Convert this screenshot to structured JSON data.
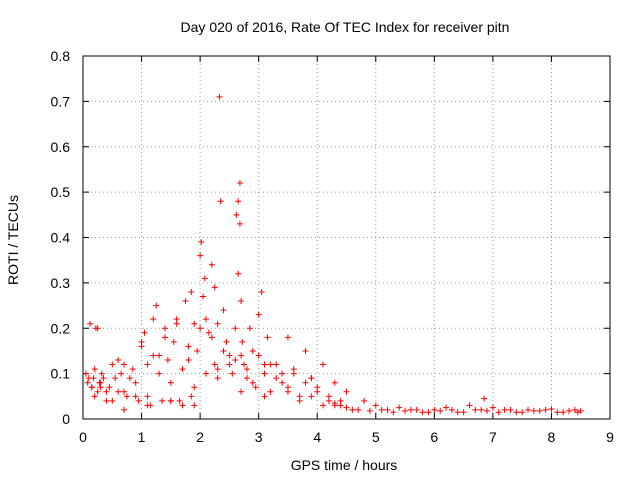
{
  "chart_data": {
    "type": "scatter",
    "title": "Day 020 of 2016, Rate Of TEC Index for receiver pitn",
    "xlabel": "GPS time / hours",
    "ylabel": "ROTI / TECUs",
    "xlim": [
      0,
      9
    ],
    "ylim": [
      0,
      0.8
    ],
    "xticks": [
      "0",
      "1",
      "2",
      "3",
      "4",
      "5",
      "6",
      "7",
      "8",
      "9"
    ],
    "yticks": [
      "0",
      "0.1",
      "0.2",
      "0.3",
      "0.4",
      "0.5",
      "0.6",
      "0.7",
      "0.8"
    ],
    "grid": true,
    "marker": "+",
    "color": "#ff0000",
    "series": [
      {
        "name": "ROTI",
        "x": [
          0.05,
          0.08,
          0.1,
          0.12,
          0.15,
          0.18,
          0.2,
          0.22,
          0.25,
          0.28,
          0.3,
          0.32,
          0.35,
          0.4,
          0.45,
          0.5,
          0.55,
          0.6,
          0.65,
          0.7,
          0.75,
          0.8,
          0.85,
          0.9,
          0.95,
          1.0,
          1.05,
          1.1,
          1.15,
          1.2,
          1.25,
          1.3,
          1.35,
          1.4,
          1.45,
          1.5,
          1.55,
          1.6,
          1.65,
          1.7,
          1.75,
          1.8,
          1.85,
          1.9,
          1.95,
          2.0,
          2.02,
          2.05,
          2.08,
          2.1,
          2.15,
          2.2,
          2.25,
          2.3,
          2.33,
          2.35,
          2.4,
          2.45,
          2.5,
          2.55,
          2.6,
          2.62,
          2.65,
          2.68,
          2.7,
          2.72,
          2.75,
          2.8,
          2.85,
          2.9,
          2.95,
          3.0,
          3.05,
          3.1,
          3.15,
          3.2,
          3.3,
          3.4,
          3.5,
          3.6,
          3.7,
          3.8,
          3.9,
          4.0,
          4.1,
          4.2,
          4.3,
          4.4,
          4.5,
          4.6,
          4.8,
          5.0,
          5.2,
          5.4,
          5.6,
          5.8,
          6.0,
          6.2,
          6.4,
          6.6,
          6.8,
          6.85,
          7.0,
          7.2,
          7.4,
          7.6,
          7.8,
          8.0,
          8.2,
          8.4,
          8.5,
          0.2,
          0.3,
          0.5,
          0.7,
          0.9,
          1.1,
          1.3,
          1.5,
          1.7,
          1.9,
          2.1,
          2.3,
          2.5,
          2.7,
          2.9,
          3.1,
          3.3,
          3.5,
          3.7,
          3.9,
          4.1,
          4.3,
          4.5,
          4.7,
          4.9,
          5.1,
          5.3,
          5.5,
          5.7,
          5.9,
          6.1,
          6.3,
          6.5,
          6.7,
          6.9,
          7.1,
          7.3,
          7.5,
          7.7,
          7.9,
          8.1,
          8.3,
          8.45,
          0.25,
          0.6,
          1.0,
          1.2,
          1.4,
          1.6,
          1.8,
          2.0,
          2.2,
          2.4,
          2.6,
          2.8,
          3.0,
          3.2,
          3.4,
          3.6,
          3.8,
          4.0,
          4.2,
          4.4,
          0.15,
          0.4,
          0.7,
          1.1,
          1.5,
          1.9,
          2.3,
          2.7,
          3.1,
          3.5,
          3.9,
          4.3,
          1.85,
          2.65,
          2.68,
          2.25
        ],
        "y": [
          0.1,
          0.08,
          0.09,
          0.21,
          0.07,
          0.09,
          0.11,
          0.2,
          0.06,
          0.08,
          0.07,
          0.1,
          0.09,
          0.06,
          0.07,
          0.12,
          0.09,
          0.06,
          0.1,
          0.12,
          0.05,
          0.09,
          0.11,
          0.08,
          0.04,
          0.16,
          0.19,
          0.12,
          0.03,
          0.22,
          0.25,
          0.14,
          0.04,
          0.2,
          0.13,
          0.04,
          0.17,
          0.22,
          0.04,
          0.11,
          0.26,
          0.13,
          0.05,
          0.21,
          0.15,
          0.36,
          0.39,
          0.27,
          0.31,
          0.22,
          0.19,
          0.34,
          0.12,
          0.21,
          0.71,
          0.48,
          0.24,
          0.17,
          0.14,
          0.1,
          0.2,
          0.45,
          0.48,
          0.52,
          0.26,
          0.17,
          0.12,
          0.09,
          0.2,
          0.15,
          0.07,
          0.23,
          0.28,
          0.1,
          0.18,
          0.06,
          0.12,
          0.08,
          0.18,
          0.1,
          0.05,
          0.15,
          0.09,
          0.06,
          0.12,
          0.04,
          0.08,
          0.03,
          0.06,
          0.02,
          0.04,
          0.03,
          0.02,
          0.025,
          0.02,
          0.015,
          0.02,
          0.025,
          0.015,
          0.03,
          0.02,
          0.045,
          0.025,
          0.02,
          0.015,
          0.02,
          0.018,
          0.022,
          0.015,
          0.02,
          0.018,
          0.05,
          0.08,
          0.04,
          0.06,
          0.05,
          0.03,
          0.1,
          0.08,
          0.03,
          0.07,
          0.1,
          0.09,
          0.12,
          0.06,
          0.08,
          0.05,
          0.09,
          0.06,
          0.04,
          0.05,
          0.03,
          0.035,
          0.025,
          0.02,
          0.018,
          0.02,
          0.015,
          0.018,
          0.02,
          0.015,
          0.018,
          0.02,
          0.015,
          0.02,
          0.018,
          0.015,
          0.02,
          0.015,
          0.018,
          0.02,
          0.015,
          0.018,
          0.015,
          0.2,
          0.13,
          0.17,
          0.14,
          0.18,
          0.21,
          0.16,
          0.2,
          0.18,
          0.15,
          0.13,
          0.11,
          0.14,
          0.12,
          0.1,
          0.11,
          0.08,
          0.07,
          0.05,
          0.04,
          0.07,
          0.04,
          0.02,
          0.05,
          0.04,
          0.03,
          0.11,
          0.14,
          0.12,
          0.07,
          0.09,
          0.03,
          0.28,
          0.32,
          0.43,
          0.29
        ]
      }
    ]
  }
}
